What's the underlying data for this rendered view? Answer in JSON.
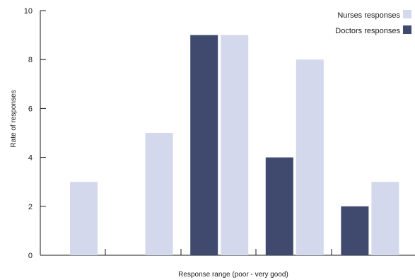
{
  "chart_data": {
    "type": "bar",
    "title": "",
    "xlabel": "Response range (poor - very good)",
    "ylabel": "Rate of responses",
    "ylim": [
      0,
      10
    ],
    "yticks": [
      0,
      2,
      4,
      6,
      8,
      10
    ],
    "grid": false,
    "legend_position": "top-right",
    "categories": [
      "",
      "",
      "",
      "",
      ""
    ],
    "series": [
      {
        "name": "Doctors responses",
        "color": "#3f4a6e",
        "values": [
          0,
          0,
          9,
          4,
          2
        ]
      },
      {
        "name": "Nurses responses",
        "color": "#d3d8ec",
        "values": [
          3,
          5,
          9,
          8,
          3
        ]
      }
    ]
  }
}
